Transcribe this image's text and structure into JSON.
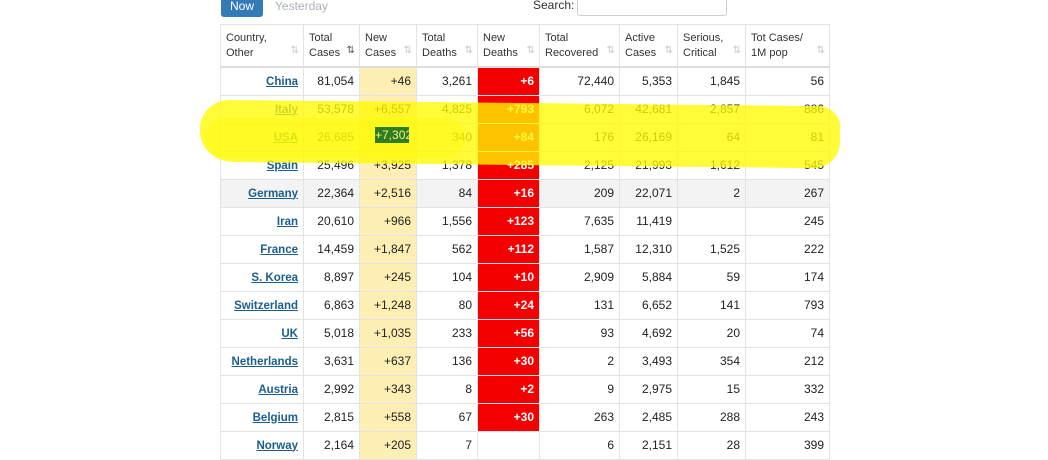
{
  "tabs": {
    "now": "Now",
    "yesterday": "Yesterday"
  },
  "search": {
    "label": "Search:",
    "value": ""
  },
  "columns": [
    {
      "line1": "Country,",
      "line2": "Other",
      "sort": "⇅"
    },
    {
      "line1": "Total",
      "line2": "Cases",
      "sort": "⇅"
    },
    {
      "line1": "New",
      "line2": "Cases",
      "sort": "⇅"
    },
    {
      "line1": "Total",
      "line2": "Deaths",
      "sort": "⇅"
    },
    {
      "line1": "New",
      "line2": "Deaths",
      "sort": "⇅"
    },
    {
      "line1": "Total",
      "line2": "Recovered",
      "sort": "⇅"
    },
    {
      "line1": "Active",
      "line2": "Cases",
      "sort": "⇅"
    },
    {
      "line1": "Serious,",
      "line2": "Critical",
      "sort": "⇅"
    },
    {
      "line1": "Tot Cases/",
      "line2": "1M pop",
      "sort": "⇅"
    }
  ],
  "rows": [
    {
      "country": "China",
      "total_cases": "81,054",
      "new_cases": "+46",
      "total_deaths": "3,261",
      "new_deaths": "+6",
      "total_recovered": "72,440",
      "active_cases": "5,353",
      "serious_critical": "1,845",
      "per_million": "56"
    },
    {
      "country": "Italy",
      "total_cases": "53,578",
      "new_cases": "+6,557",
      "total_deaths": "4,825",
      "new_deaths": "+793",
      "total_recovered": "6,072",
      "active_cases": "42,681",
      "serious_critical": "2,857",
      "per_million": "886"
    },
    {
      "country": "USA",
      "total_cases": "26,685",
      "new_cases": "+7,302",
      "total_deaths": "340",
      "new_deaths": "+84",
      "total_recovered": "176",
      "active_cases": "26,169",
      "serious_critical": "64",
      "per_million": "81"
    },
    {
      "country": "Spain",
      "total_cases": "25,496",
      "new_cases": "+3,925",
      "total_deaths": "1,378",
      "new_deaths": "+285",
      "total_recovered": "2,125",
      "active_cases": "21,993",
      "serious_critical": "1,612",
      "per_million": "545"
    },
    {
      "country": "Germany",
      "total_cases": "22,364",
      "new_cases": "+2,516",
      "total_deaths": "84",
      "new_deaths": "+16",
      "total_recovered": "209",
      "active_cases": "22,071",
      "serious_critical": "2",
      "per_million": "267"
    },
    {
      "country": "Iran",
      "total_cases": "20,610",
      "new_cases": "+966",
      "total_deaths": "1,556",
      "new_deaths": "+123",
      "total_recovered": "7,635",
      "active_cases": "11,419",
      "serious_critical": "",
      "per_million": "245"
    },
    {
      "country": "France",
      "total_cases": "14,459",
      "new_cases": "+1,847",
      "total_deaths": "562",
      "new_deaths": "+112",
      "total_recovered": "1,587",
      "active_cases": "12,310",
      "serious_critical": "1,525",
      "per_million": "222"
    },
    {
      "country": "S. Korea",
      "total_cases": "8,897",
      "new_cases": "+245",
      "total_deaths": "104",
      "new_deaths": "+10",
      "total_recovered": "2,909",
      "active_cases": "5,884",
      "serious_critical": "59",
      "per_million": "174"
    },
    {
      "country": "Switzerland",
      "total_cases": "6,863",
      "new_cases": "+1,248",
      "total_deaths": "80",
      "new_deaths": "+24",
      "total_recovered": "131",
      "active_cases": "6,652",
      "serious_critical": "141",
      "per_million": "793"
    },
    {
      "country": "UK",
      "total_cases": "5,018",
      "new_cases": "+1,035",
      "total_deaths": "233",
      "new_deaths": "+56",
      "total_recovered": "93",
      "active_cases": "4,692",
      "serious_critical": "20",
      "per_million": "74"
    },
    {
      "country": "Netherlands",
      "total_cases": "3,631",
      "new_cases": "+637",
      "total_deaths": "136",
      "new_deaths": "+30",
      "total_recovered": "2",
      "active_cases": "3,493",
      "serious_critical": "354",
      "per_million": "212"
    },
    {
      "country": "Austria",
      "total_cases": "2,992",
      "new_cases": "+343",
      "total_deaths": "8",
      "new_deaths": "+2",
      "total_recovered": "9",
      "active_cases": "2,975",
      "serious_critical": "15",
      "per_million": "332"
    },
    {
      "country": "Belgium",
      "total_cases": "2,815",
      "new_cases": "+558",
      "total_deaths": "67",
      "new_deaths": "+30",
      "total_recovered": "263",
      "active_cases": "2,485",
      "serious_critical": "288",
      "per_million": "243"
    },
    {
      "country": "Norway",
      "total_cases": "2,164",
      "new_cases": "+205",
      "total_deaths": "7",
      "new_deaths": "",
      "total_recovered": "6",
      "active_cases": "2,151",
      "serious_critical": "28",
      "per_million": "399"
    }
  ],
  "colors": {
    "accent": "#337ab7",
    "new_cases_bg": "#fdeeb4",
    "new_deaths_bg": "#f50000",
    "link": "#1a5f8c",
    "highlighter": "#fffa00"
  },
  "icons": {
    "sort": "sort-arrows-icon"
  }
}
